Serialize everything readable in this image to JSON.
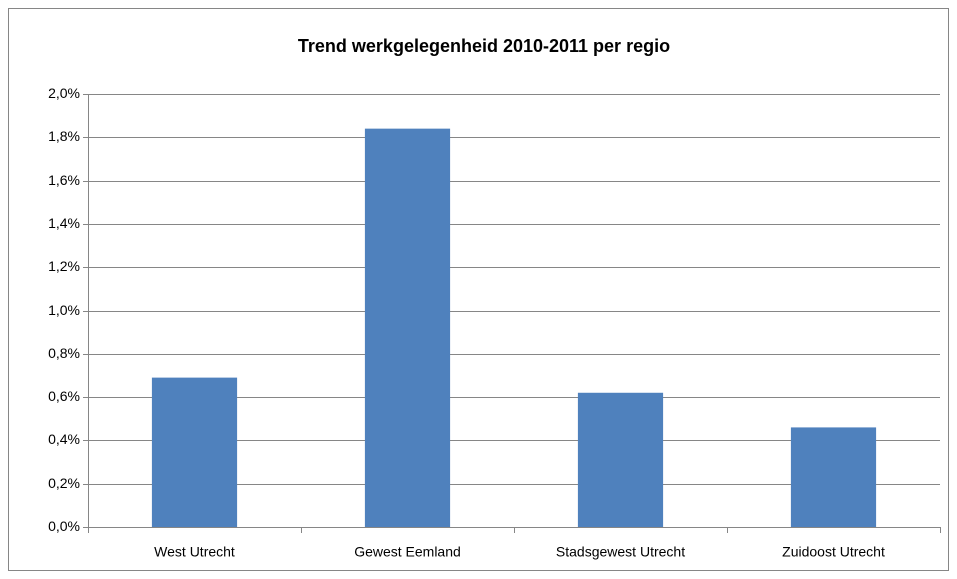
{
  "chart_data": {
    "type": "bar",
    "title": "Trend werkgelegenheid 2010-2011 per regio",
    "categories": [
      "West Utrecht",
      "Gewest Eemland",
      "Stadsgewest Utrecht",
      "Zuidoost Utrecht"
    ],
    "values": [
      0.69,
      1.84,
      0.62,
      0.46
    ],
    "color": "#4f81bd",
    "ylim": [
      0,
      2.0
    ],
    "yticks": [
      {
        "value": 0,
        "label": "0,0%"
      },
      {
        "value": 0.2,
        "label": "0,2%"
      },
      {
        "value": 0.4,
        "label": "0,4%"
      },
      {
        "value": 0.6,
        "label": "0,6%"
      },
      {
        "value": 0.8,
        "label": "0,8%"
      },
      {
        "value": 1.0,
        "label": "1,0%"
      },
      {
        "value": 1.2,
        "label": "1,2%"
      },
      {
        "value": 1.4,
        "label": "1,4%"
      },
      {
        "value": 1.6,
        "label": "1,6%"
      },
      {
        "value": 1.8,
        "label": "1,8%"
      },
      {
        "value": 2.0,
        "label": "2,0%"
      }
    ],
    "grid": true
  }
}
